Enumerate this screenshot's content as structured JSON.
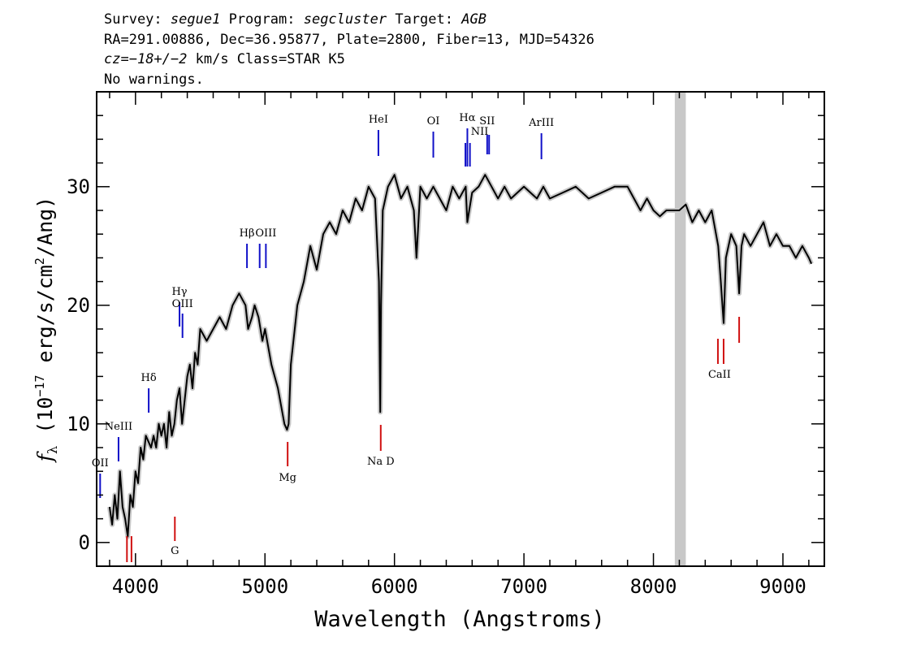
{
  "header": {
    "survey_label": "Survey:",
    "survey": "segue1",
    "program_label": "Program:",
    "program": "segcluster",
    "target_label": "Target:",
    "target": "AGB",
    "line2": "RA=291.00886, Dec=36.95877, Plate=2800, Fiber=13, MJD=54326",
    "cz_label": "cz",
    "cz_value": "=−18+/−2",
    "cz_unit": " km/s Class=STAR K5",
    "line4": "No warnings."
  },
  "chart_data": {
    "type": "line",
    "xlabel": "Wavelength (Angstroms)",
    "ylabel": "f_λ (10^-17 erg/s/cm^2/Ang)",
    "xlim": [
      3700,
      9320
    ],
    "ylim": [
      -2,
      38
    ],
    "x_ticks": [
      4000,
      5000,
      6000,
      7000,
      8000,
      9000
    ],
    "y_ticks": [
      0,
      10,
      20,
      30
    ],
    "grid": false,
    "colors": {
      "flux": "#000000",
      "error": "#c8c8c8",
      "emission": "#1010c8",
      "absorption": "#d01010",
      "masked": "#c8c8c8"
    },
    "masked_band": [
      8165,
      8250
    ],
    "series": [
      {
        "x": [
          3800,
          3820,
          3840,
          3860,
          3880,
          3900,
          3920,
          3940,
          3960,
          3980,
          4000,
          4020,
          4040,
          4060,
          4080,
          4100,
          4120,
          4140,
          4160,
          4180,
          4200,
          4220,
          4240,
          4260,
          4280,
          4300,
          4320,
          4340,
          4360,
          4380,
          4400,
          4420,
          4440,
          4460,
          4480,
          4500,
          4550,
          4600,
          4650,
          4700,
          4750,
          4800,
          4850,
          4870,
          4900,
          4920,
          4950,
          4980,
          5000,
          5050,
          5100,
          5150,
          5170,
          5183,
          5200,
          5250,
          5300,
          5350,
          5400,
          5450,
          5500,
          5550,
          5600,
          5650,
          5700,
          5750,
          5800,
          5850,
          5880,
          5890,
          5896,
          5910,
          5950,
          6000,
          6050,
          6100,
          6150,
          6170,
          6200,
          6250,
          6300,
          6350,
          6400,
          6450,
          6500,
          6550,
          6563,
          6600,
          6650,
          6700,
          6750,
          6800,
          6850,
          6900,
          6950,
          7000,
          7050,
          7100,
          7150,
          7200,
          7300,
          7400,
          7500,
          7600,
          7700,
          7800,
          7850,
          7900,
          7950,
          8000,
          8050,
          8100,
          8150,
          8200,
          8250,
          8300,
          8350,
          8400,
          8450,
          8500,
          8520,
          8542,
          8560,
          8600,
          8640,
          8662,
          8680,
          8700,
          8750,
          8800,
          8850,
          8900,
          8950,
          9000,
          9050,
          9100,
          9150,
          9200,
          9220
        ],
        "y": [
          3,
          1.5,
          4,
          2,
          6,
          3,
          2,
          0.5,
          4,
          3,
          6,
          5,
          8,
          7,
          9,
          8.5,
          8,
          9,
          8,
          10,
          9,
          10,
          8,
          11,
          9,
          10,
          12,
          13,
          10,
          12,
          14,
          15,
          13,
          16,
          15,
          18,
          17,
          18,
          19,
          18,
          20,
          21,
          20,
          18,
          19,
          20,
          19,
          17,
          18,
          15,
          13,
          10,
          9.5,
          10,
          15,
          20,
          22,
          25,
          23,
          26,
          27,
          26,
          28,
          27,
          29,
          28,
          30,
          29,
          22,
          11,
          20,
          28,
          30,
          31,
          29,
          30,
          28,
          24,
          30,
          29,
          30,
          29,
          28,
          30,
          29,
          30,
          27,
          29.5,
          30,
          31,
          30,
          29,
          30,
          29,
          29.5,
          30,
          29.5,
          29,
          30,
          29,
          29.5,
          30,
          29,
          29.5,
          30,
          30,
          29,
          28,
          29,
          28,
          27.5,
          28,
          28,
          28,
          28.5,
          27,
          28,
          27,
          28,
          25,
          22,
          18.5,
          24,
          26,
          25,
          21,
          25,
          26,
          25,
          26,
          27,
          25,
          26,
          25,
          25,
          24,
          25,
          24,
          23.5
        ]
      }
    ],
    "emission_lines": [
      {
        "label": "OII",
        "x": 3727
      },
      {
        "label": "NeIII",
        "x": 3869
      },
      {
        "label": "Hδ",
        "x": 4102
      },
      {
        "label": "Hγ",
        "x": 4340
      },
      {
        "label": "OIII",
        "x": 4363
      },
      {
        "label": "Hβ",
        "x": 4861
      },
      {
        "label": "OIII",
        "x": 4959
      },
      {
        "label": "OIII",
        "x": 5007
      },
      {
        "label": "HeI",
        "x": 5876
      },
      {
        "label": "OI",
        "x": 6300
      },
      {
        "label": "NII",
        "x": 6548
      },
      {
        "label": "Hα",
        "x": 6563
      },
      {
        "label": "NII",
        "x": 6583
      },
      {
        "label": "SII",
        "x": 6716
      },
      {
        "label": "SII",
        "x": 6731
      },
      {
        "label": "ArIII",
        "x": 7135
      }
    ],
    "absorption_lines": [
      {
        "label": "",
        "x": 3934
      },
      {
        "label": "",
        "x": 3969
      },
      {
        "label": "G",
        "x": 4304
      },
      {
        "label": "Mg",
        "x": 5175
      },
      {
        "label": "Na D",
        "x": 5894
      },
      {
        "label": "CaII",
        "x": 8498
      },
      {
        "label": "",
        "x": 8542
      },
      {
        "label": "",
        "x": 8662
      }
    ]
  }
}
